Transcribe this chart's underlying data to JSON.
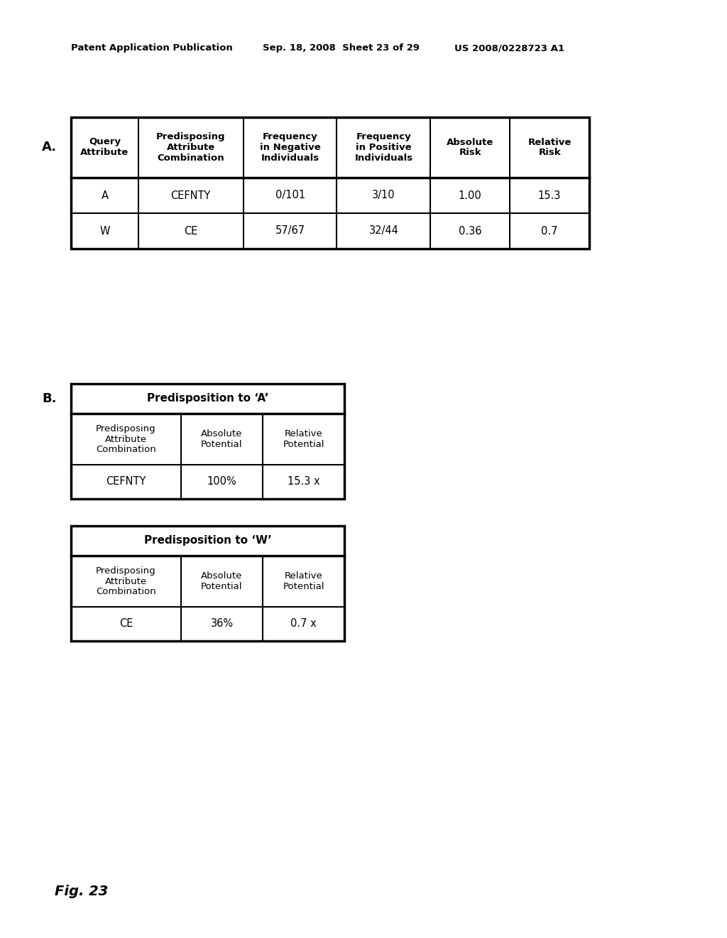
{
  "header_left": "Patent Application Publication",
  "header_mid": "Sep. 18, 2008  Sheet 23 of 29",
  "header_right": "US 2008/0228723 A1",
  "fig_label": "Fig. 23",
  "section_a_label": "A.",
  "section_b_label": "B.",
  "table_a": {
    "headers": [
      "Query\nAttribute",
      "Predisposing\nAttribute\nCombination",
      "Frequency\nin Negative\nIndividuals",
      "Frequency\nin Positive\nIndividuals",
      "Absolute\nRisk",
      "Relative\nRisk"
    ],
    "rows": [
      [
        "A",
        "CEFNTY",
        "0/101",
        "3/10",
        "1.00",
        "15.3"
      ],
      [
        "W",
        "CE",
        "57/67",
        "32/44",
        "0.36",
        "0.7"
      ]
    ]
  },
  "table_b1": {
    "title": "Predisposition to ‘A’",
    "headers": [
      "Predisposing\nAttribute\nCombination",
      "Absolute\nPotential",
      "Relative\nPotential"
    ],
    "rows": [
      [
        "CEFNTY",
        "100%",
        "15.3 x"
      ]
    ]
  },
  "table_b2": {
    "title": "Predisposition to ‘W’",
    "headers": [
      "Predisposing\nAttribute\nCombination",
      "Absolute\nPotential",
      "Relative\nPotential"
    ],
    "rows": [
      [
        "CE",
        "36%",
        "0.7 x"
      ]
    ]
  },
  "bg_color": "#ffffff",
  "text_color": "#000000",
  "line_color": "#000000"
}
